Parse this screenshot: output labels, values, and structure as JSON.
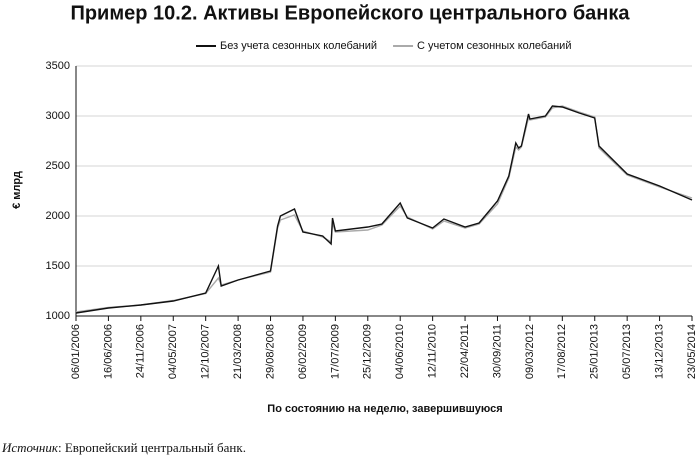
{
  "chart_data": {
    "type": "line",
    "title": "Пример 10.2. Активы Европейского центрального банка",
    "y_label": "€ млрд",
    "x_label": "По состоянию на неделю, завершившуюся",
    "source_label": "Источник",
    "source_text": ": Европейский центральный банк.",
    "x": [
      "06/01/2006",
      "16/06/2006",
      "24/11/2006",
      "04/05/2007",
      "12/10/2007",
      "14/12/2007",
      "28/12/2007",
      "21/03/2008",
      "29/08/2008",
      "03/10/2008",
      "17/10/2008",
      "26/12/2008",
      "06/02/2009",
      "15/05/2009",
      "26/06/2009",
      "03/07/2009",
      "17/07/2009",
      "25/12/2009",
      "05/03/2010",
      "04/06/2010",
      "09/07/2010",
      "12/11/2010",
      "07/01/2011",
      "22/04/2011",
      "01/07/2011",
      "30/09/2011",
      "25/11/2011",
      "30/12/2011",
      "13/01/2012",
      "27/01/2012",
      "02/03/2012",
      "09/03/2012",
      "25/05/2012",
      "29/06/2012",
      "17/08/2012",
      "09/11/2012",
      "25/01/2013",
      "15/02/2013",
      "05/07/2013",
      "13/12/2013",
      "23/05/2014"
    ],
    "series": [
      {
        "name": "Без учета сезонных колебаний",
        "color": "#111111",
        "values": [
          1030,
          1080,
          1110,
          1150,
          1230,
          1500,
          1300,
          1360,
          1450,
          1900,
          2000,
          2070,
          1840,
          1800,
          1720,
          1980,
          1850,
          1890,
          1920,
          2130,
          1980,
          1880,
          1970,
          1890,
          1930,
          2150,
          2400,
          2730,
          2680,
          2700,
          3020,
          2970,
          3000,
          3100,
          3090,
          3030,
          2980,
          2700,
          2420,
          2300,
          2160
        ]
      },
      {
        "name": "С учетом сезонных колебаний",
        "color": "#aaaaaa",
        "values": [
          1040,
          1085,
          1110,
          1155,
          1225,
          1380,
          1310,
          1360,
          1440,
          1880,
          1960,
          2010,
          1850,
          1790,
          1740,
          1930,
          1840,
          1860,
          1910,
          2100,
          1990,
          1870,
          1950,
          1880,
          1920,
          2120,
          2380,
          2690,
          2660,
          2690,
          2980,
          2960,
          2990,
          3080,
          3100,
          3040,
          2990,
          2680,
          2410,
          2290,
          2180
        ]
      }
    ],
    "xlim": [
      "06/01/2006",
      "23/05/2014"
    ],
    "xticks": [
      "06/01/2006",
      "16/06/2006",
      "24/11/2006",
      "04/05/2007",
      "12/10/2007",
      "21/03/2008",
      "29/08/2008",
      "06/02/2009",
      "17/07/2009",
      "25/12/2009",
      "04/06/2010",
      "12/11/2010",
      "22/04/2011",
      "30/09/2011",
      "09/03/2012",
      "17/08/2012",
      "25/01/2013",
      "05/07/2013",
      "13/12/2013",
      "23/05/2014"
    ],
    "ylim": [
      1000,
      3500
    ],
    "yticks": [
      1000,
      1500,
      2000,
      2500,
      3000,
      3500
    ],
    "grid": true
  }
}
